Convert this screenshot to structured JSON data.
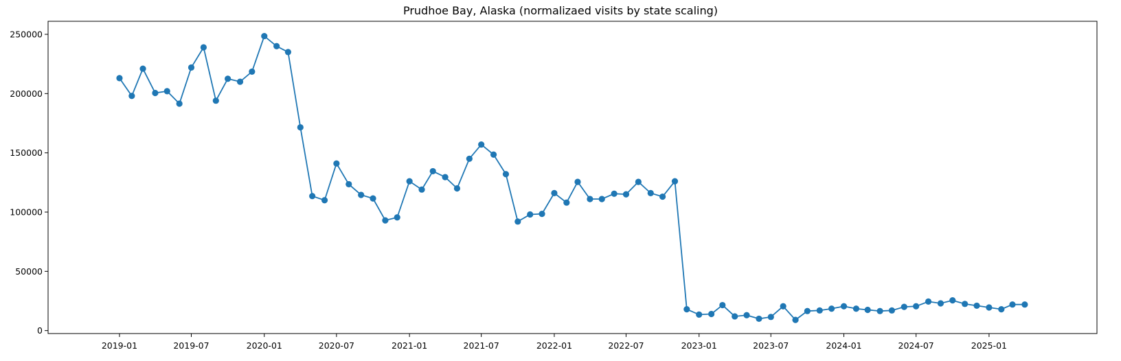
{
  "chart_data": {
    "type": "line",
    "title": "Prudhoe Bay, Alaska (normalizaed visits by state scaling)",
    "xlabel": "",
    "ylabel": "",
    "marker": "circle",
    "color": "#1f77b4",
    "grid": false,
    "legend": "none",
    "xlim": [
      "2018-07-05",
      "2025-09-30"
    ],
    "ylim": [
      -2500,
      261000
    ],
    "x_ticks": [
      "2019-01-01",
      "2019-07-01",
      "2020-01-01",
      "2020-07-01",
      "2021-01-01",
      "2021-07-01",
      "2022-01-01",
      "2022-07-01",
      "2023-01-01",
      "2023-07-01",
      "2024-01-01",
      "2024-07-01",
      "2025-01-01"
    ],
    "x_tick_labels": [
      "2019-01",
      "2019-07",
      "2020-01",
      "2020-07",
      "2021-01",
      "2021-07",
      "2022-01",
      "2022-07",
      "2023-01",
      "2023-07",
      "2024-01",
      "2024-07",
      "2025-01"
    ],
    "y_ticks": [
      0,
      50000,
      100000,
      150000,
      200000,
      250000
    ],
    "y_tick_labels": [
      "0",
      "50000",
      "100000",
      "150000",
      "200000",
      "250000"
    ],
    "x": [
      "2019-01",
      "2019-02",
      "2019-03",
      "2019-04",
      "2019-05",
      "2019-06",
      "2019-07",
      "2019-08",
      "2019-09",
      "2019-10",
      "2019-11",
      "2019-12",
      "2020-01",
      "2020-02",
      "2020-03",
      "2020-04",
      "2020-05",
      "2020-06",
      "2020-07",
      "2020-08",
      "2020-09",
      "2020-10",
      "2020-11",
      "2020-12",
      "2021-01",
      "2021-02",
      "2021-03",
      "2021-04",
      "2021-05",
      "2021-06",
      "2021-07",
      "2021-08",
      "2021-09",
      "2021-10",
      "2021-11",
      "2021-12",
      "2022-01",
      "2022-02",
      "2022-03",
      "2022-04",
      "2022-05",
      "2022-06",
      "2022-07",
      "2022-08",
      "2022-09",
      "2022-10",
      "2022-11",
      "2022-12",
      "2023-01",
      "2023-02",
      "2023-03",
      "2023-04",
      "2023-05",
      "2023-06",
      "2023-07",
      "2023-08",
      "2023-09",
      "2023-10",
      "2023-11",
      "2023-12",
      "2024-01",
      "2024-02",
      "2024-03",
      "2024-04",
      "2024-05",
      "2024-06",
      "2024-07",
      "2024-08",
      "2024-09",
      "2024-10",
      "2024-11",
      "2024-12",
      "2025-01",
      "2025-02",
      "2025-03",
      "2025-04"
    ],
    "y": [
      213000,
      198000,
      221000,
      200500,
      202000,
      191500,
      222000,
      239000,
      194000,
      212500,
      210000,
      218500,
      248500,
      240000,
      235000,
      171500,
      113500,
      110000,
      141000,
      123500,
      114500,
      111500,
      93000,
      95500,
      126000,
      119000,
      134500,
      129500,
      120000,
      145000,
      157000,
      148500,
      132000,
      92000,
      98000,
      98500,
      116000,
      108000,
      125500,
      111000,
      111000,
      115500,
      115000,
      125500,
      116000,
      113000,
      126000,
      18000,
      13500,
      14000,
      21500,
      12000,
      13000,
      10000,
      11500,
      20500,
      9000,
      16500,
      17000,
      18500,
      20500,
      18500,
      17500,
      16500,
      17000,
      20000,
      20500,
      24500,
      23000,
      25500,
      22500,
      21000,
      19500,
      18000,
      22000,
      22000
    ]
  }
}
